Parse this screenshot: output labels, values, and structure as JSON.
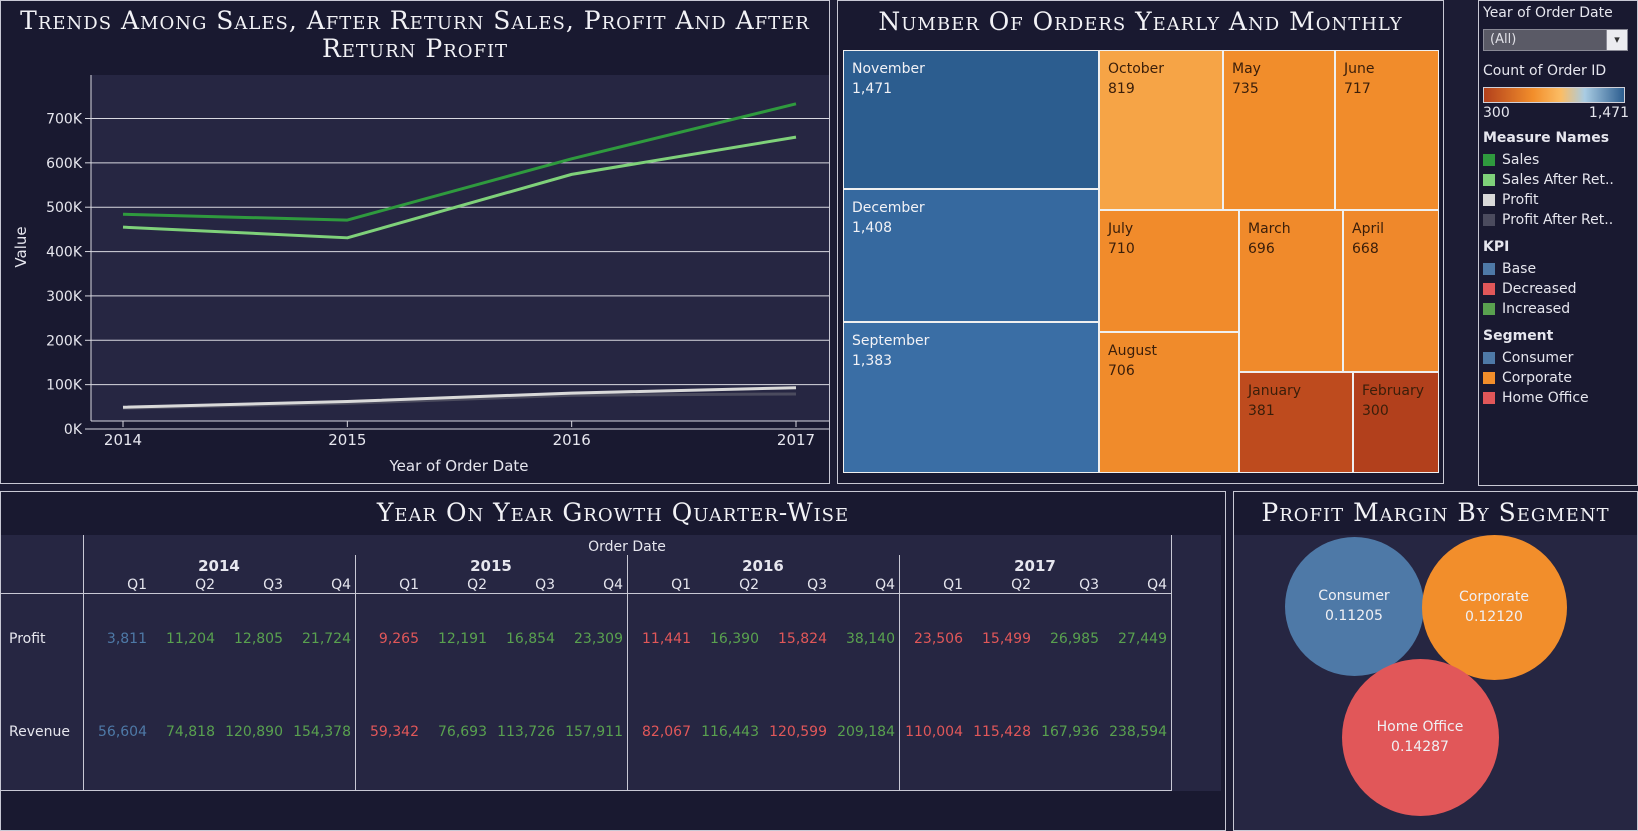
{
  "line_panel": {
    "title": "Trends Among Sales, After Return Sales, Profit And After Return Profit"
  },
  "treemap_panel": {
    "title": "Number Of Orders Yearly And Monthly"
  },
  "growth_panel": {
    "title": "Year On Year Growth Quarter-Wise",
    "header": "Order Date",
    "row_labels": [
      "Profit",
      "Revenue"
    ]
  },
  "bubble_panel": {
    "title": "Profit Margin By Segment"
  },
  "legend": {
    "filter_title": "Year of Order Date",
    "filter_value": "(All)",
    "color_title": "Count of Order ID",
    "color_min": "300",
    "color_max": "1,471",
    "colors": {
      "low": "#b2401c",
      "mid_low": "#f28e2b",
      "mid_high": "#fbbd65",
      "mid": "#a9cce3",
      "high": "#2c5d8f"
    },
    "measure_title": "Measure Names",
    "measures": [
      {
        "label": "Sales",
        "color": "#2f9a3e"
      },
      {
        "label": "Sales After Ret..",
        "color": "#7fd17a"
      },
      {
        "label": "Profit",
        "color": "#d9d9d9"
      },
      {
        "label": "Profit After Ret..",
        "color": "#4b4b5e"
      }
    ],
    "kpi_title": "KPI",
    "kpis": [
      {
        "label": "Base",
        "color": "#4e79a7"
      },
      {
        "label": "Decreased",
        "color": "#e15759"
      },
      {
        "label": "Increased",
        "color": "#59a14f"
      }
    ],
    "segment_title": "Segment",
    "segments": [
      {
        "label": "Consumer",
        "color": "#4e79a7"
      },
      {
        "label": "Corporate",
        "color": "#f28e2b"
      },
      {
        "label": "Home Office",
        "color": "#e15759"
      }
    ]
  },
  "chart_data": [
    {
      "type": "line",
      "title": "Trends Among Sales, After Return Sales, Profit And After Return Profit",
      "xlabel": "Year of Order Date",
      "ylabel": "Value",
      "x": [
        "2014",
        "2015",
        "2016",
        "2017"
      ],
      "ylim": [
        0,
        780000
      ],
      "yticks": [
        0,
        100000,
        200000,
        300000,
        400000,
        500000,
        600000,
        700000
      ],
      "ytick_labels": [
        "0K",
        "100K",
        "200K",
        "300K",
        "400K",
        "500K",
        "600K",
        "700K"
      ],
      "grid": true,
      "series": [
        {
          "name": "Sales",
          "color": "#2f9a3e",
          "values": [
            484000,
            471000,
            609000,
            733000
          ]
        },
        {
          "name": "Sales After Ret..",
          "color": "#7fd17a",
          "values": [
            455000,
            431000,
            574000,
            658000
          ]
        },
        {
          "name": "Profit",
          "color": "#d9d9d9",
          "values": [
            49000,
            62000,
            81000,
            93000
          ]
        },
        {
          "name": "Profit After Ret..",
          "color": "#4b4b5e",
          "values": [
            47000,
            58000,
            76000,
            79000
          ]
        }
      ]
    },
    {
      "type": "treemap",
      "title": "Number Of Orders Yearly And Monthly",
      "color_label": "Count of Order ID",
      "items": [
        {
          "name": "November",
          "value": 1471,
          "label": "1,471",
          "segment": "Consumer"
        },
        {
          "name": "December",
          "value": 1408,
          "label": "1,408",
          "segment": "Consumer"
        },
        {
          "name": "September",
          "value": 1383,
          "label": "1,383",
          "segment": "Consumer"
        },
        {
          "name": "October",
          "value": 819,
          "label": "819",
          "segment": "Corporate"
        },
        {
          "name": "May",
          "value": 735,
          "label": "735",
          "segment": "Corporate"
        },
        {
          "name": "June",
          "value": 717,
          "label": "717",
          "segment": "Corporate"
        },
        {
          "name": "July",
          "value": 710,
          "label": "710",
          "segment": "Corporate"
        },
        {
          "name": "March",
          "value": 696,
          "label": "696",
          "segment": "Corporate"
        },
        {
          "name": "April",
          "value": 668,
          "label": "668",
          "segment": "Corporate"
        },
        {
          "name": "August",
          "value": 706,
          "label": "706",
          "segment": "Corporate"
        },
        {
          "name": "January",
          "value": 381,
          "label": "381",
          "segment": "Corporate"
        },
        {
          "name": "February",
          "value": 300,
          "label": "300",
          "segment": "Corporate"
        }
      ]
    },
    {
      "type": "table",
      "title": "Year On Year Growth Quarter-Wise",
      "years": [
        "2014",
        "2015",
        "2016",
        "2017"
      ],
      "quarters": [
        "Q1",
        "Q2",
        "Q3",
        "Q4"
      ],
      "rows": [
        {
          "name": "Profit",
          "cells": [
            {
              "value": "3,811",
              "kpi": "Base"
            },
            {
              "value": "11,204",
              "kpi": "Increased"
            },
            {
              "value": "12,805",
              "kpi": "Increased"
            },
            {
              "value": "21,724",
              "kpi": "Increased"
            },
            {
              "value": "9,265",
              "kpi": "Decreased"
            },
            {
              "value": "12,191",
              "kpi": "Increased"
            },
            {
              "value": "16,854",
              "kpi": "Increased"
            },
            {
              "value": "23,309",
              "kpi": "Increased"
            },
            {
              "value": "11,441",
              "kpi": "Decreased"
            },
            {
              "value": "16,390",
              "kpi": "Increased"
            },
            {
              "value": "15,824",
              "kpi": "Decreased"
            },
            {
              "value": "38,140",
              "kpi": "Increased"
            },
            {
              "value": "23,506",
              "kpi": "Decreased"
            },
            {
              "value": "15,499",
              "kpi": "Decreased"
            },
            {
              "value": "26,985",
              "kpi": "Increased"
            },
            {
              "value": "27,449",
              "kpi": "Increased"
            }
          ]
        },
        {
          "name": "Revenue",
          "cells": [
            {
              "value": "56,604",
              "kpi": "Base"
            },
            {
              "value": "74,818",
              "kpi": "Increased"
            },
            {
              "value": "120,890",
              "kpi": "Increased"
            },
            {
              "value": "154,378",
              "kpi": "Increased"
            },
            {
              "value": "59,342",
              "kpi": "Decreased"
            },
            {
              "value": "76,693",
              "kpi": "Increased"
            },
            {
              "value": "113,726",
              "kpi": "Increased"
            },
            {
              "value": "157,911",
              "kpi": "Increased"
            },
            {
              "value": "82,067",
              "kpi": "Decreased"
            },
            {
              "value": "116,443",
              "kpi": "Increased"
            },
            {
              "value": "120,599",
              "kpi": "Decreased"
            },
            {
              "value": "209,184",
              "kpi": "Increased"
            },
            {
              "value": "110,004",
              "kpi": "Decreased"
            },
            {
              "value": "115,428",
              "kpi": "Decreased"
            },
            {
              "value": "167,936",
              "kpi": "Increased"
            },
            {
              "value": "238,594",
              "kpi": "Increased"
            }
          ]
        }
      ]
    },
    {
      "type": "bubble",
      "title": "Profit Margin By Segment",
      "items": [
        {
          "name": "Consumer",
          "value": 0.11205,
          "label": "0.11205",
          "color": "#4e79a7"
        },
        {
          "name": "Corporate",
          "value": 0.1212,
          "label": "0.12120",
          "color": "#f28e2b"
        },
        {
          "name": "Home Office",
          "value": 0.14287,
          "label": "0.14287",
          "color": "#e15759"
        }
      ]
    }
  ]
}
